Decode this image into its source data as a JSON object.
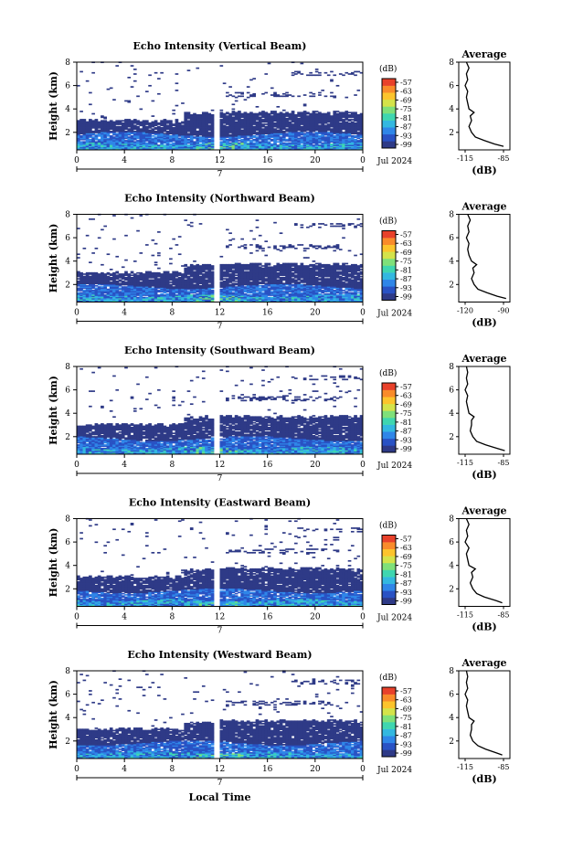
{
  "figure": {
    "xlabel": "Local Time",
    "date_label": "Jul 2024",
    "day_label": "7",
    "colorbar_label": "(dB)",
    "colorbar_ticks": [
      "-57",
      "-63",
      "-69",
      "-75",
      "-81",
      "-87",
      "-93",
      "-99"
    ],
    "colorscale": [
      "#2e3a87",
      "#2952c4",
      "#2f86e8",
      "#33b8e0",
      "#3fd6b0",
      "#7fe07a",
      "#d4e34a",
      "#fcc42c",
      "#f98b2a",
      "#e8412a"
    ],
    "missing_interval_hours": [
      11.5,
      12.0
    ]
  },
  "chart_data": [
    {
      "type": "heatmap",
      "title": "Echo Intensity (Vertical Beam)",
      "xlabel": "Local Time",
      "ylabel": "Height (km)",
      "xlim": [
        0,
        24
      ],
      "ylim": [
        0.5,
        8
      ],
      "xticks": [
        "0",
        "4",
        "8",
        "12",
        "16",
        "20",
        "0"
      ],
      "yticks": [
        "2",
        "4",
        "6",
        "8"
      ],
      "units": "dB",
      "clim": [
        -99,
        -57
      ],
      "grid": false,
      "profile": {
        "title": "Average",
        "xticks": [
          "-115",
          "-85"
        ],
        "xlim": [
          -120,
          -80
        ],
        "xlabel": "(dB)",
        "yticks": [
          "2",
          "4",
          "6",
          "8"
        ],
        "height_km": [
          0.8,
          1.0,
          1.3,
          1.6,
          2.0,
          2.5,
          3.0,
          3.4,
          3.7,
          4.0,
          4.5,
          5.0,
          5.5,
          6.0,
          6.5,
          7.0,
          7.5,
          8.0
        ],
        "db": [
          -85,
          -92,
          -100,
          -107,
          -110,
          -112,
          -110,
          -111,
          -108,
          -112,
          -113,
          -114,
          -113,
          -115,
          -113,
          -114,
          -112,
          -114
        ]
      }
    },
    {
      "type": "heatmap",
      "title": "Echo Intensity (Northward Beam)",
      "xlabel": "Local Time",
      "ylabel": "Height (km)",
      "xlim": [
        0,
        24
      ],
      "ylim": [
        0.5,
        8
      ],
      "xticks": [
        "0",
        "4",
        "8",
        "12",
        "16",
        "20",
        "0"
      ],
      "yticks": [
        "2",
        "4",
        "6",
        "8"
      ],
      "units": "dB",
      "clim": [
        -99,
        -57
      ],
      "grid": false,
      "profile": {
        "title": "Average",
        "xticks": [
          "-120",
          "-90"
        ],
        "xlim": [
          -125,
          -85
        ],
        "xlabel": "(dB)",
        "yticks": [
          "2",
          "4",
          "6",
          "8"
        ],
        "height_km": [
          0.8,
          1.0,
          1.3,
          1.6,
          2.0,
          2.5,
          3.0,
          3.4,
          3.7,
          4.0,
          4.5,
          5.0,
          5.5,
          6.0,
          6.5,
          7.0,
          7.5,
          8.0
        ],
        "db": [
          -88,
          -95,
          -103,
          -110,
          -113,
          -115,
          -113,
          -114,
          -111,
          -115,
          -117,
          -118,
          -117,
          -119,
          -117,
          -118,
          -116,
          -118
        ]
      }
    },
    {
      "type": "heatmap",
      "title": "Echo Intensity (Southward Beam)",
      "xlabel": "Local Time",
      "ylabel": "Height (km)",
      "xlim": [
        0,
        24
      ],
      "ylim": [
        0.5,
        8
      ],
      "xticks": [
        "0",
        "4",
        "8",
        "12",
        "16",
        "20",
        "0"
      ],
      "yticks": [
        "2",
        "4",
        "6",
        "8"
      ],
      "units": "dB",
      "clim": [
        -99,
        -57
      ],
      "grid": false,
      "profile": {
        "title": "Average",
        "xticks": [
          "-115",
          "-85"
        ],
        "xlim": [
          -120,
          -80
        ],
        "xlabel": "(dB)",
        "yticks": [
          "2",
          "4",
          "6",
          "8"
        ],
        "height_km": [
          0.8,
          1.0,
          1.3,
          1.6,
          2.0,
          2.5,
          3.0,
          3.4,
          3.7,
          4.0,
          4.5,
          5.0,
          5.5,
          6.0,
          6.5,
          7.0,
          7.5,
          8.0
        ],
        "db": [
          -84,
          -90,
          -99,
          -106,
          -109,
          -111,
          -110,
          -110,
          -108,
          -112,
          -113,
          -114,
          -113,
          -115,
          -113,
          -114,
          -113,
          -114
        ]
      }
    },
    {
      "type": "heatmap",
      "title": "Echo Intensity (Eastward Beam)",
      "xlabel": "Local Time",
      "ylabel": "Height (km)",
      "xlim": [
        0,
        24
      ],
      "ylim": [
        0.5,
        8
      ],
      "xticks": [
        "0",
        "4",
        "8",
        "12",
        "16",
        "20",
        "0"
      ],
      "yticks": [
        "2",
        "4",
        "6",
        "8"
      ],
      "units": "dB",
      "clim": [
        -99,
        -57
      ],
      "grid": false,
      "profile": {
        "title": "Average",
        "xticks": [
          "-115",
          "-85"
        ],
        "xlim": [
          -120,
          -80
        ],
        "xlabel": "(dB)",
        "yticks": [
          "2",
          "4",
          "6",
          "8"
        ],
        "height_km": [
          0.8,
          1.0,
          1.3,
          1.6,
          2.0,
          2.5,
          3.0,
          3.4,
          3.7,
          4.0,
          4.5,
          5.0,
          5.5,
          6.0,
          6.5,
          7.0,
          7.5,
          8.0
        ],
        "db": [
          -86,
          -91,
          -100,
          -106,
          -109,
          -111,
          -109,
          -110,
          -107,
          -112,
          -113,
          -114,
          -112,
          -115,
          -113,
          -114,
          -112,
          -114
        ]
      }
    },
    {
      "type": "heatmap",
      "title": "Echo Intensity (Westward Beam)",
      "xlabel": "Local Time",
      "ylabel": "Height (km)",
      "xlim": [
        0,
        24
      ],
      "ylim": [
        0.5,
        8
      ],
      "xticks": [
        "0",
        "4",
        "8",
        "12",
        "16",
        "20",
        "0"
      ],
      "yticks": [
        "2",
        "4",
        "6",
        "8"
      ],
      "units": "dB",
      "clim": [
        -99,
        -57
      ],
      "grid": false,
      "profile": {
        "title": "Average",
        "xticks": [
          "-115",
          "-85"
        ],
        "xlim": [
          -120,
          -80
        ],
        "xlabel": "(dB)",
        "yticks": [
          "2",
          "4",
          "6",
          "8"
        ],
        "height_km": [
          0.8,
          1.0,
          1.3,
          1.6,
          2.0,
          2.5,
          3.0,
          3.4,
          3.7,
          4.0,
          4.5,
          5.0,
          5.5,
          6.0,
          6.5,
          7.0,
          7.5,
          8.0
        ],
        "db": [
          -86,
          -91,
          -99,
          -105,
          -109,
          -111,
          -110,
          -110,
          -108,
          -112,
          -113,
          -114,
          -113,
          -115,
          -113,
          -114,
          -113,
          -114
        ]
      }
    }
  ]
}
